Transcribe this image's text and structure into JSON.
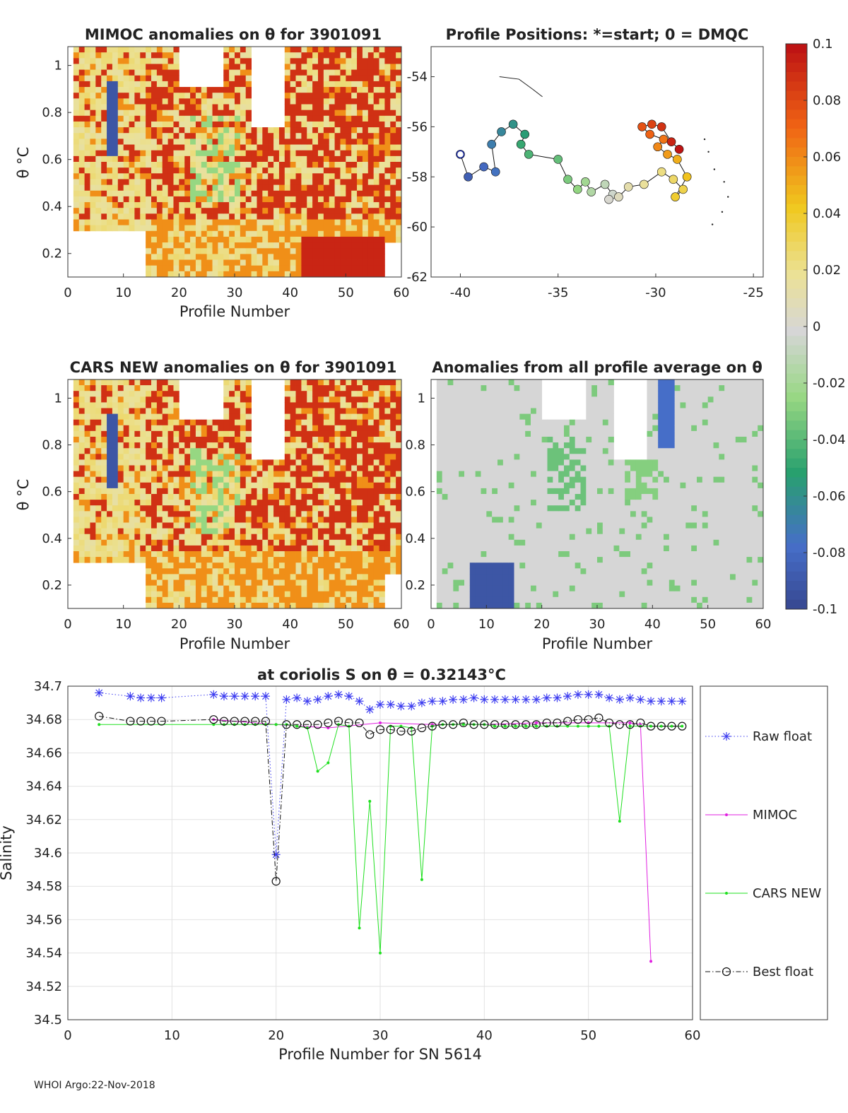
{
  "panels": {
    "mimoc": {
      "title": "MIMOC anomalies on θ  for 3901091",
      "xlabel": "Profile Number",
      "ylabel": "θ °C",
      "xticks": [
        "0",
        "10",
        "20",
        "30",
        "40",
        "50",
        "60"
      ],
      "yticks": [
        "0.2",
        "0.4",
        "0.6",
        "0.8",
        "1"
      ]
    },
    "positions": {
      "title": "Profile Positions: *=start; 0 = DMQC",
      "xticks": [
        "-40",
        "-35",
        "-30",
        "-25"
      ],
      "yticks": [
        "-54",
        "-56",
        "-58",
        "-60",
        "-62"
      ]
    },
    "cars": {
      "title": "CARS NEW anomalies on θ for 3901091",
      "xlabel": "Profile Number",
      "ylabel": "θ °C",
      "xticks": [
        "0",
        "10",
        "20",
        "30",
        "40",
        "50",
        "60"
      ],
      "yticks": [
        "0.2",
        "0.4",
        "0.6",
        "0.8",
        "1"
      ]
    },
    "average": {
      "title": "Anomalies from all profile average on θ",
      "xlabel": "Profile Number",
      "xticks": [
        "0",
        "10",
        "20",
        "30",
        "40",
        "50",
        "60"
      ],
      "yticks": [
        "0.2",
        "0.4",
        "0.6",
        "0.8",
        "1"
      ]
    },
    "colorbar": {
      "ticks": [
        "0.1",
        "0.08",
        "0.06",
        "0.04",
        "0.02",
        "0",
        "-0.02",
        "-0.04",
        "-0.06",
        "-0.08",
        "-0.1"
      ]
    }
  },
  "chart_data": [
    {
      "type": "line",
      "title": "at coriolis S on θ = 0.32143°C",
      "xlabel": "Profile Number for SN 5614",
      "ylabel": "Salinity",
      "xlim": [
        0,
        60
      ],
      "ylim": [
        34.5,
        34.7
      ],
      "xticks": [
        "0",
        "10",
        "20",
        "30",
        "40",
        "50",
        "60"
      ],
      "yticks": [
        "34.5",
        "34.52",
        "34.54",
        "34.56",
        "34.58",
        "34.6",
        "34.62",
        "34.64",
        "34.66",
        "34.68",
        "34.7"
      ],
      "grid": true,
      "legend_position": "right, outside",
      "series": [
        {
          "name": "Raw float",
          "color": "#3b3bf0",
          "marker": "asterisk",
          "line": "dotted",
          "x": [
            3,
            6,
            7,
            8,
            9,
            14,
            15,
            16,
            17,
            18,
            19,
            20,
            21,
            22,
            23,
            24,
            25,
            26,
            27,
            28,
            29,
            30,
            31,
            32,
            33,
            34,
            35,
            36,
            37,
            38,
            39,
            40,
            41,
            42,
            43,
            44,
            45,
            46,
            47,
            48,
            49,
            50,
            51,
            52,
            53,
            54,
            55,
            56,
            57,
            58,
            59
          ],
          "y": [
            34.696,
            34.694,
            34.693,
            34.693,
            34.693,
            34.695,
            34.694,
            34.694,
            34.694,
            34.694,
            34.694,
            34.599,
            34.692,
            34.693,
            34.691,
            34.692,
            34.694,
            34.695,
            34.694,
            34.691,
            34.686,
            34.689,
            34.689,
            34.688,
            34.688,
            34.69,
            34.691,
            34.691,
            34.692,
            34.692,
            34.693,
            34.692,
            34.692,
            34.692,
            34.692,
            34.692,
            34.692,
            34.693,
            34.693,
            34.694,
            34.695,
            34.695,
            34.695,
            34.693,
            34.692,
            34.693,
            34.692,
            34.691,
            34.691,
            34.691,
            34.691
          ]
        },
        {
          "name": "MIMOC",
          "color": "#e020e0",
          "marker": "dot",
          "line": "solid",
          "x": [
            14,
            20,
            25,
            30,
            35,
            40,
            45,
            50,
            54,
            55,
            56
          ],
          "y": [
            34.68,
            34.677,
            34.675,
            34.678,
            34.677,
            34.677,
            34.678,
            34.678,
            34.678,
            34.677,
            34.535
          ]
        },
        {
          "name": "CARS NEW",
          "color": "#20e020",
          "marker": "dot",
          "line": "solid",
          "x": [
            3,
            14,
            15,
            16,
            17,
            18,
            19,
            20,
            21,
            22,
            23,
            24,
            25,
            26,
            27,
            28,
            29,
            30,
            31,
            32,
            33,
            34,
            35,
            36,
            37,
            38,
            39,
            40,
            41,
            42,
            43,
            44,
            45,
            46,
            47,
            48,
            49,
            50,
            51,
            52,
            53,
            54,
            55,
            56,
            57,
            58,
            59
          ],
          "y": [
            34.677,
            34.677,
            34.677,
            34.677,
            34.677,
            34.677,
            34.677,
            34.677,
            34.677,
            34.676,
            34.675,
            34.649,
            34.654,
            34.677,
            34.676,
            34.555,
            34.631,
            34.54,
            34.676,
            34.676,
            34.675,
            34.584,
            34.676,
            34.677,
            34.677,
            34.677,
            34.677,
            34.677,
            34.676,
            34.676,
            34.676,
            34.676,
            34.676,
            34.676,
            34.676,
            34.676,
            34.676,
            34.676,
            34.676,
            34.676,
            34.619,
            34.676,
            34.676,
            34.676,
            34.676,
            34.676,
            34.676
          ]
        },
        {
          "name": "Best float",
          "color": "#111111",
          "marker": "circle",
          "line": "dashdot",
          "x": [
            3,
            6,
            7,
            8,
            9,
            14,
            15,
            16,
            17,
            18,
            19,
            20,
            21,
            22,
            23,
            24,
            25,
            26,
            27,
            28,
            29,
            30,
            31,
            32,
            33,
            34,
            35,
            36,
            37,
            38,
            39,
            40,
            41,
            42,
            43,
            44,
            45,
            46,
            47,
            48,
            49,
            50,
            51,
            52,
            53,
            54,
            55,
            56,
            57,
            58,
            59
          ],
          "y": [
            34.682,
            34.679,
            34.679,
            34.679,
            34.679,
            34.68,
            34.679,
            34.679,
            34.679,
            34.679,
            34.679,
            34.583,
            34.677,
            34.677,
            34.677,
            34.677,
            34.678,
            34.679,
            34.678,
            34.678,
            34.671,
            34.674,
            34.674,
            34.673,
            34.673,
            34.675,
            34.676,
            34.677,
            34.677,
            34.678,
            34.677,
            34.677,
            34.677,
            34.677,
            34.677,
            34.677,
            34.677,
            34.678,
            34.678,
            34.679,
            34.68,
            34.68,
            34.681,
            34.678,
            34.677,
            34.677,
            34.678,
            34.676,
            34.676,
            34.676,
            34.676
          ]
        }
      ]
    }
  ],
  "footer": "WHOI Argo:22-Nov-2018"
}
